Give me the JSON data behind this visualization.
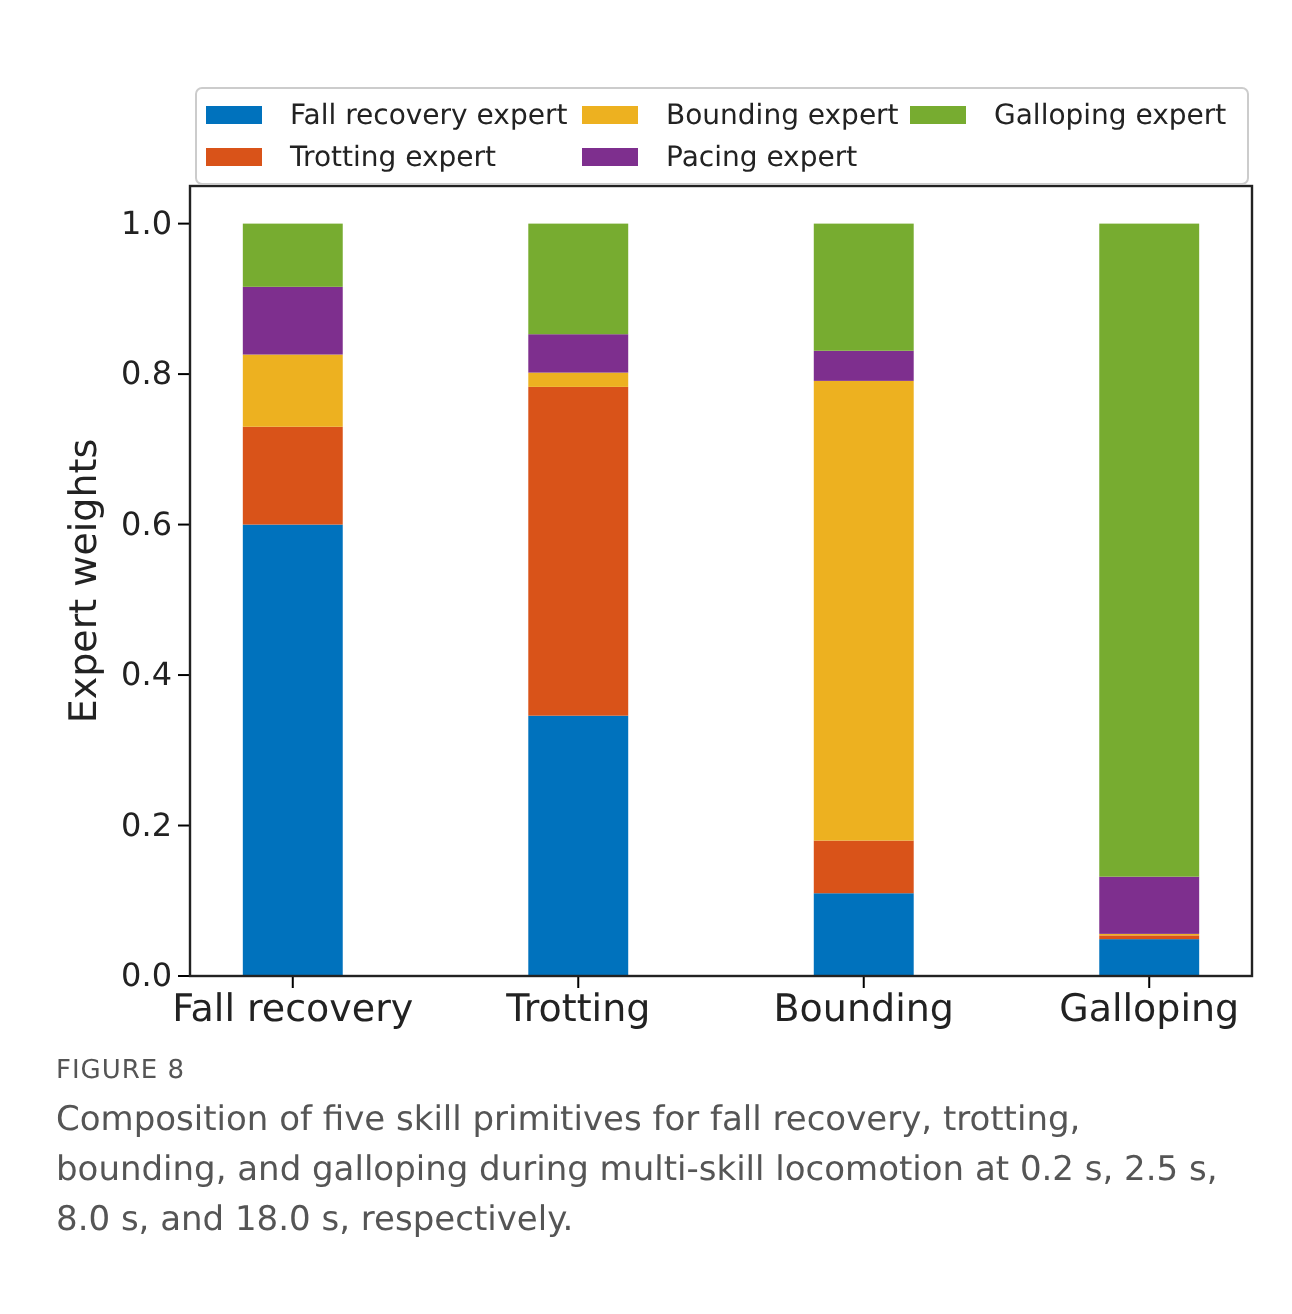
{
  "chart_data": {
    "type": "bar",
    "stacked": true,
    "categories": [
      "Fall recovery",
      "Trotting",
      "Bounding",
      "Galloping"
    ],
    "series": [
      {
        "name": "Fall recovery expert",
        "color": "#0072bd",
        "values": [
          0.6,
          0.346,
          0.11,
          0.049
        ]
      },
      {
        "name": "Trotting expert",
        "color": "#d95319",
        "values": [
          0.13,
          0.437,
          0.07,
          0.005
        ]
      },
      {
        "name": "Bounding expert",
        "color": "#edb120",
        "values": [
          0.096,
          0.019,
          0.611,
          0.002
        ]
      },
      {
        "name": "Pacing expert",
        "color": "#7e2f8e",
        "values": [
          0.09,
          0.051,
          0.04,
          0.076
        ]
      },
      {
        "name": "Galloping expert",
        "color": "#77ac30",
        "values": [
          0.084,
          0.147,
          0.169,
          0.868
        ]
      }
    ],
    "ylabel": "Expert weights",
    "ylim": [
      0,
      1.05
    ],
    "yticks": [
      {
        "value": 0,
        "label": "0.0"
      },
      {
        "value": 0.2,
        "label": "0.2"
      },
      {
        "value": 0.4,
        "label": "0.4"
      },
      {
        "value": 0.6,
        "label": "0.6"
      },
      {
        "value": 0.8,
        "label": "0.8"
      },
      {
        "value": 1,
        "label": "1.0"
      }
    ],
    "legend": "top",
    "grid": false,
    "annotations": [
      "FIGURE 8",
      "Composition of five skill primitives for fall recovery, trotting, bounding, and galloping during multi-skill locomotion at 0.2 s, 2.5 s, 8.0 s, and 18.0 s, respectively."
    ]
  }
}
